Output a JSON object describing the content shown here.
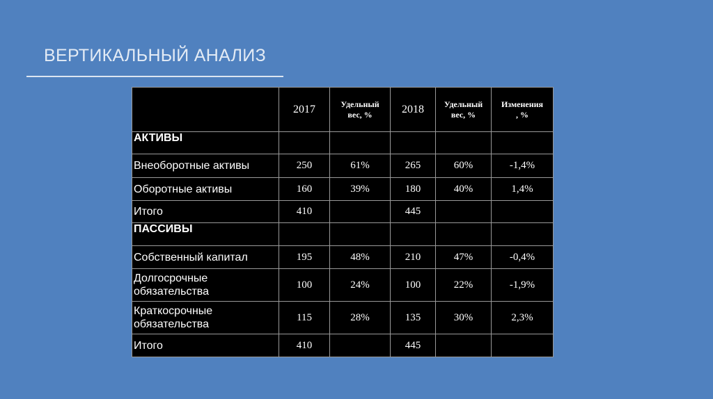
{
  "slide": {
    "title": "ВЕРТИКАЛЬНЫЙ АНАЛИЗ"
  },
  "table": {
    "header": {
      "col_2017": "2017",
      "col_share_1": [
        "Удельный",
        "вес, %"
      ],
      "col_2018": "2018",
      "col_share_2": [
        "Удельный",
        "вес, %"
      ],
      "col_change": [
        "Изменения",
        ", %"
      ]
    },
    "sections": {
      "assets": "АКТИВЫ",
      "liabilities": "ПАССИВЫ"
    },
    "rows": [
      [
        "Внеоборотные активы",
        "250",
        "61%",
        "265",
        "60%",
        "-1,4%"
      ],
      [
        "Оборотные активы",
        "160",
        "39%",
        "180",
        "40%",
        "1,4%"
      ],
      [
        "Итого",
        "410",
        "",
        "445",
        "",
        ""
      ],
      [
        "Собственный капитал",
        "195",
        "48%",
        "210",
        "47%",
        "-0,4%"
      ],
      [
        "Долгосрочные обязательства",
        "100",
        "24%",
        "100",
        "22%",
        "-1,9%"
      ],
      [
        "Краткосрочные обязательства",
        "115",
        "28%",
        "135",
        "30%",
        "2,3%"
      ],
      [
        "Итого",
        "410",
        "",
        "445",
        "",
        ""
      ]
    ]
  }
}
